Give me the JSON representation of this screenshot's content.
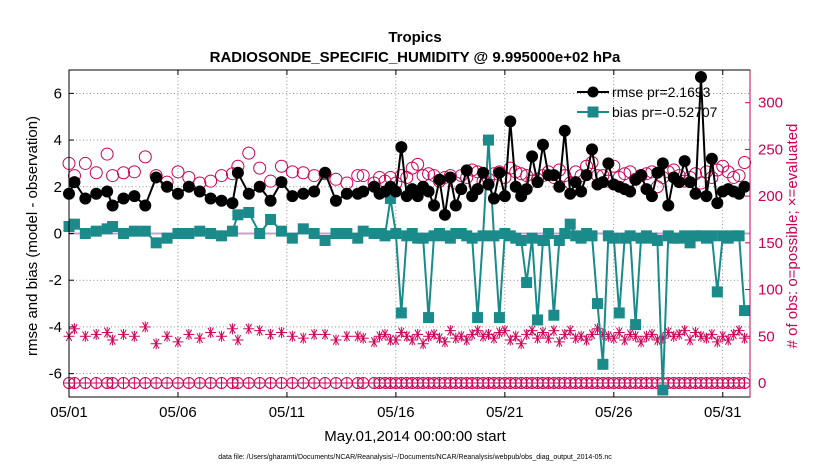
{
  "chart_data": {
    "type": "line",
    "title": "Tropics",
    "subtitle": "RADIOSONDE_SPECIFIC_HUMIDITY @ 9.995000e+02 hPa",
    "xlabel": "May.01,2014 00:00:00 start",
    "ylabel": "rmse and bias (model - observation)",
    "y2label": "# of obs: o=possible; ×=evaluated",
    "footnote": "data file: /Users/gharamti/Documents/NCAR/Reanalysis/~/Documents/NCAR/Reanalysis/webpub/obs_diag_output_2014-05.nc",
    "x_ticks": [
      "05/01",
      "05/06",
      "05/11",
      "05/16",
      "05/21",
      "05/26",
      "05/31"
    ],
    "x_tick_days": [
      0,
      5,
      10,
      15,
      20,
      25,
      30
    ],
    "xlim": [
      0,
      31.25
    ],
    "ylim": [
      -7,
      7
    ],
    "y_ticks": [
      "-6",
      "-4",
      "-2",
      "0",
      "2",
      "4",
      "6"
    ],
    "y_tick_values": [
      -6,
      -4,
      -2,
      0,
      2,
      4,
      6
    ],
    "y2lim": [
      -15,
      335
    ],
    "y2_ticks": [
      "0",
      "50",
      "100",
      "150",
      "200",
      "250",
      "300"
    ],
    "y2_tick_values": [
      0,
      50,
      100,
      150,
      200,
      250,
      300
    ],
    "zero_line": 0,
    "colors": {
      "rmse": "#000000",
      "bias": "#1a8a8a",
      "obs": "#cc0055",
      "zero": "#c8a0c8"
    },
    "legend": [
      {
        "name": "rmse",
        "label": "rmse pr=2.1693"
      },
      {
        "name": "bias",
        "label": "bias pr=-0.52707"
      }
    ],
    "series": [
      {
        "name": "rmse",
        "day": [
          0,
          0.25,
          0.75,
          1.25,
          1.75,
          2,
          2.5,
          3,
          3.5,
          4,
          4.5,
          5,
          5.5,
          6,
          6.5,
          7,
          7.5,
          7.75,
          8.25,
          8.75,
          9.25,
          9.75,
          10.25,
          10.75,
          11.25,
          11.75,
          12.25,
          12.75,
          13.25,
          13.5,
          14,
          14.25,
          14.5,
          14.75,
          15,
          15.25,
          15.5,
          15.75,
          16,
          16.25,
          16.5,
          16.75,
          17,
          17.25,
          17.5,
          17.75,
          18,
          18.25,
          18.5,
          18.75,
          19,
          19.25,
          19.5,
          19.75,
          20,
          20.25,
          20.5,
          20.75,
          21,
          21.25,
          21.5,
          21.75,
          22,
          22.25,
          22.5,
          22.75,
          23,
          23.25,
          23.5,
          23.75,
          24,
          24.25,
          24.5,
          24.75,
          25,
          25.25,
          25.5,
          25.75,
          26,
          26.25,
          26.5,
          26.75,
          27,
          27.25,
          27.5,
          27.75,
          28,
          28.25,
          28.5,
          28.75,
          29,
          29.25,
          29.5,
          29.75,
          30,
          30.25,
          30.5,
          30.75,
          31
        ],
        "values": [
          1.7,
          2.2,
          1.5,
          1.7,
          1.8,
          1.2,
          1.5,
          1.6,
          1.2,
          2.4,
          2.0,
          1.7,
          2.0,
          1.8,
          1.5,
          1.4,
          1.3,
          2.6,
          1.7,
          2.0,
          1.4,
          2.2,
          1.6,
          1.7,
          1.8,
          2.6,
          1.4,
          1.7,
          1.7,
          1.8,
          2.0,
          1.7,
          1.8,
          2.0,
          1.8,
          3.7,
          1.6,
          1.9,
          1.6,
          2.0,
          1.8,
          1.2,
          2.3,
          0.8,
          2.4,
          1.2,
          1.9,
          2.7,
          1.6,
          1.9,
          2.6,
          2.1,
          1.5,
          2.6,
          1.6,
          4.8,
          2.0,
          1.6,
          1.9,
          3.3,
          2.2,
          3.8,
          2.5,
          2.5,
          2.0,
          4.4,
          1.7,
          2.2,
          1.8,
          2.5,
          3.6,
          2.1,
          2.2,
          3.0,
          2.1,
          2.0,
          1.9,
          1.8,
          2.3,
          2.5,
          1.9,
          1.6,
          2.6,
          3.0,
          1.2,
          2.4,
          2.2,
          3.1,
          2.2,
          1.7,
          6.7,
          1.6,
          3.2,
          1.3,
          1.8,
          1.9,
          1.8,
          1.7,
          2.0,
          1.9,
          2.2
        ]
      },
      {
        "name": "bias",
        "day": [
          0,
          0.25,
          0.75,
          1.25,
          1.75,
          2,
          2.5,
          3,
          3.5,
          4,
          4.5,
          5,
          5.5,
          6,
          6.5,
          7,
          7.5,
          7.75,
          8.25,
          8.75,
          9.25,
          9.75,
          10.25,
          10.75,
          11.25,
          11.75,
          12.25,
          12.75,
          13.25,
          13.5,
          14,
          14.25,
          14.5,
          14.75,
          15,
          15.25,
          15.5,
          15.75,
          16,
          16.25,
          16.5,
          16.75,
          17,
          17.25,
          17.5,
          17.75,
          18,
          18.25,
          18.5,
          18.75,
          19,
          19.25,
          19.5,
          19.75,
          20,
          20.25,
          20.5,
          20.75,
          21,
          21.25,
          21.5,
          21.75,
          22,
          22.25,
          22.5,
          22.75,
          23,
          23.25,
          23.5,
          23.75,
          24,
          24.25,
          24.5,
          24.75,
          25,
          25.25,
          25.5,
          25.75,
          26,
          26.25,
          26.5,
          26.75,
          27,
          27.25,
          27.5,
          27.75,
          28,
          28.25,
          28.5,
          28.75,
          29,
          29.25,
          29.5,
          29.75,
          30,
          30.25,
          30.5,
          30.75,
          31
        ],
        "values": [
          0.3,
          0.4,
          0.0,
          0.1,
          0.2,
          0.3,
          0.0,
          0.1,
          0.1,
          -0.4,
          -0.2,
          0.0,
          0.0,
          0.1,
          0.0,
          -0.1,
          0.1,
          0.8,
          0.9,
          0.0,
          0.6,
          0.1,
          -0.2,
          0.2,
          0.0,
          -0.3,
          0.0,
          0.0,
          -0.2,
          0.1,
          0.0,
          0.0,
          -0.1,
          1.5,
          0.0,
          -3.4,
          -0.1,
          0.0,
          -0.2,
          -0.2,
          -3.6,
          -0.1,
          0.0,
          -0.1,
          -0.2,
          0.0,
          0.0,
          -0.1,
          -0.2,
          -3.6,
          -0.1,
          4.0,
          -0.1,
          -3.6,
          0.0,
          -0.1,
          -0.2,
          -0.3,
          -2.1,
          -0.2,
          -3.7,
          -0.3,
          0.0,
          -3.5,
          -0.3,
          0.0,
          0.4,
          -0.1,
          -0.2,
          0.0,
          -0.1,
          -3.0,
          -5.6,
          -0.1,
          -0.2,
          -3.4,
          -0.2,
          -0.1,
          -3.9,
          -0.2,
          -0.1,
          -0.2,
          -0.3,
          -6.7,
          -0.1,
          -0.2,
          -0.2,
          -0.1,
          -0.4,
          -0.1,
          -0.1,
          -0.2,
          -0.1,
          -2.5,
          -0.1,
          -0.2,
          -0.1,
          -0.1,
          -3.3,
          -0.1,
          -0.1
        ]
      },
      {
        "name": "obs_possible",
        "day": [
          0,
          0.25,
          0.75,
          1.25,
          1.75,
          2,
          2.5,
          3,
          3.5,
          4,
          4.5,
          5,
          5.5,
          6,
          6.5,
          7,
          7.5,
          7.75,
          8.25,
          8.75,
          9.25,
          9.75,
          10.25,
          10.75,
          11.25,
          11.75,
          12.25,
          12.75,
          13.25,
          13.5,
          14,
          14.25,
          14.5,
          14.75,
          15,
          15.25,
          15.5,
          15.75,
          16,
          16.25,
          16.5,
          16.75,
          17,
          17.25,
          17.5,
          17.75,
          18,
          18.25,
          18.5,
          18.75,
          19,
          19.25,
          19.5,
          19.75,
          20,
          20.25,
          20.5,
          20.75,
          21,
          21.25,
          21.5,
          21.75,
          22,
          22.25,
          22.5,
          22.75,
          23,
          23.25,
          23.5,
          23.75,
          24,
          24.25,
          24.5,
          24.75,
          25,
          25.25,
          25.5,
          25.75,
          26,
          26.25,
          26.5,
          26.75,
          27,
          27.25,
          27.5,
          27.75,
          28,
          28.25,
          28.5,
          28.75,
          29,
          29.25,
          29.5,
          29.75,
          30,
          30.25,
          30.5,
          30.75,
          31
        ],
        "values": [
          235,
          222,
          235,
          225,
          245,
          222,
          225,
          226,
          242,
          222,
          215,
          226,
          220,
          214,
          216,
          222,
          224,
          232,
          246,
          230,
          216,
          232,
          226,
          225,
          222,
          224,
          218,
          214,
          222,
          222,
          214,
          220,
          216,
          220,
          214,
          222,
          220,
          230,
          234,
          222,
          224,
          222,
          216,
          220,
          222,
          214,
          222,
          220,
          228,
          226,
          216,
          218,
          224,
          226,
          220,
          230,
          226,
          224,
          222,
          216,
          218,
          222,
          226,
          220,
          228,
          222,
          214,
          226,
          222,
          232,
          236,
          222,
          222,
          216,
          232,
          220,
          224,
          226,
          218,
          222,
          224,
          226,
          210,
          220,
          226,
          228,
          222,
          216,
          220,
          224,
          214,
          226,
          220,
          228,
          232,
          226,
          220,
          222,
          236,
          224,
          228
        ]
      },
      {
        "name": "obs_evaluated",
        "day": [
          0,
          0.25,
          0.75,
          1.25,
          1.75,
          2,
          2.5,
          3,
          3.5,
          4,
          4.5,
          5,
          5.5,
          6,
          6.5,
          7,
          7.5,
          7.75,
          8.25,
          8.75,
          9.25,
          9.75,
          10.25,
          10.75,
          11.25,
          11.75,
          12.25,
          12.75,
          13.25,
          13.5,
          14,
          14.25,
          14.5,
          14.75,
          15,
          15.25,
          15.5,
          15.75,
          16,
          16.25,
          16.5,
          16.75,
          17,
          17.25,
          17.5,
          17.75,
          18,
          18.25,
          18.5,
          18.75,
          19,
          19.25,
          19.5,
          19.75,
          20,
          20.25,
          20.5,
          20.75,
          21,
          21.25,
          21.5,
          21.75,
          22,
          22.25,
          22.5,
          22.75,
          23,
          23.25,
          23.5,
          23.75,
          24,
          24.25,
          24.5,
          24.75,
          25,
          25.25,
          25.5,
          25.75,
          26,
          26.25,
          26.5,
          26.75,
          27,
          27.25,
          27.5,
          27.75,
          28,
          28.25,
          28.5,
          28.75,
          29,
          29.25,
          29.5,
          29.75,
          30,
          30.25,
          30.5,
          30.75,
          31
        ],
        "values": [
          50,
          58,
          50,
          52,
          54,
          46,
          52,
          50,
          60,
          42,
          50,
          44,
          52,
          48,
          54,
          50,
          58,
          46,
          58,
          56,
          52,
          54,
          50,
          48,
          52,
          52,
          46,
          50,
          50,
          48,
          44,
          50,
          52,
          46,
          46,
          54,
          50,
          46,
          52,
          42,
          50,
          52,
          48,
          44,
          56,
          48,
          50,
          46,
          52,
          56,
          50,
          52,
          48,
          54,
          56,
          46,
          50,
          42,
          52,
          56,
          48,
          54,
          48,
          56,
          44,
          52,
          56,
          48,
          50,
          46,
          52,
          58,
          52,
          50,
          48,
          54,
          46,
          52,
          50,
          44,
          50,
          52,
          46,
          48,
          54,
          50,
          52,
          56,
          46,
          54,
          50,
          48,
          52,
          44,
          50,
          46,
          52,
          56,
          48,
          54,
          46
        ]
      }
    ]
  }
}
